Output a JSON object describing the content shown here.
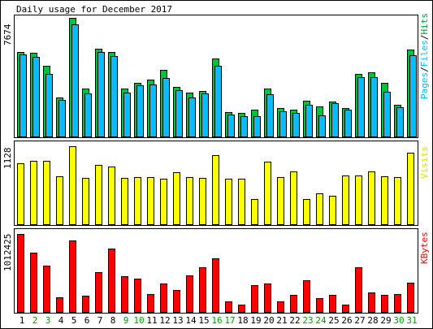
{
  "title": "Daily usage for December 2017",
  "legend": {
    "pages": "Pages",
    "files": "Files",
    "hits": "Hits",
    "visits": "Visits",
    "kbytes": "KBytes",
    "sep1": "/",
    "sep2": "/"
  },
  "axis_max": {
    "hits": "7674",
    "visits": "1128",
    "kbytes": "1012425"
  },
  "colors": {
    "hits": "#00c040",
    "files": "#00c0ff",
    "pages": "#00c0ff",
    "visits": "#ffff00",
    "kbytes": "#ff0000",
    "weekend_label": "#00a000",
    "weekday_label": "#000000",
    "frame": "#000000",
    "background": "#ffffff"
  },
  "chart_data": [
    {
      "type": "bar",
      "name": "hits-files",
      "categories": [
        "1",
        "2",
        "3",
        "4",
        "5",
        "6",
        "7",
        "8",
        "9",
        "10",
        "11",
        "12",
        "13",
        "14",
        "15",
        "16",
        "17",
        "18",
        "19",
        "20",
        "21",
        "22",
        "23",
        "24",
        "25",
        "26",
        "27",
        "28",
        "29",
        "30",
        "31"
      ],
      "ylim": [
        0,
        7674
      ],
      "series": [
        {
          "name": "Hits",
          "values": [
            5470,
            5420,
            4560,
            2500,
            7670,
            3100,
            5700,
            5460,
            3090,
            3490,
            3670,
            4320,
            3230,
            2820,
            2960,
            5070,
            1570,
            1540,
            1740,
            3090,
            1860,
            1730,
            2300,
            1960,
            2250,
            1850,
            4040,
            4140,
            3480,
            2060,
            5640
          ]
        },
        {
          "name": "Files",
          "values": [
            5300,
            5170,
            4050,
            2340,
            7270,
            2790,
            5480,
            5220,
            2820,
            3300,
            3380,
            3800,
            3000,
            2520,
            2790,
            4570,
            1400,
            1340,
            1310,
            2720,
            1620,
            1510,
            2050,
            1360,
            2150,
            1740,
            3840,
            3860,
            2900,
            1910,
            5250
          ]
        }
      ],
      "ylabel": "7674"
    },
    {
      "type": "bar",
      "name": "visits",
      "categories": [
        "1",
        "2",
        "3",
        "4",
        "5",
        "6",
        "7",
        "8",
        "9",
        "10",
        "11",
        "12",
        "13",
        "14",
        "15",
        "16",
        "17",
        "18",
        "19",
        "20",
        "21",
        "22",
        "23",
        "24",
        "25",
        "26",
        "27",
        "28",
        "29",
        "30",
        "31"
      ],
      "ylim": [
        0,
        1128
      ],
      "series": [
        {
          "name": "Visits",
          "values": [
            880,
            920,
            920,
            690,
            1128,
            670,
            860,
            840,
            670,
            680,
            680,
            660,
            750,
            680,
            670,
            1000,
            660,
            660,
            360,
            910,
            680,
            760,
            370,
            450,
            410,
            710,
            700,
            760,
            690,
            680,
            1030
          ]
        }
      ],
      "ylabel": "1128"
    },
    {
      "type": "bar",
      "name": "kbytes",
      "categories": [
        "1",
        "2",
        "3",
        "4",
        "5",
        "6",
        "7",
        "8",
        "9",
        "10",
        "11",
        "12",
        "13",
        "14",
        "15",
        "16",
        "17",
        "18",
        "19",
        "20",
        "21",
        "22",
        "23",
        "24",
        "25",
        "26",
        "27",
        "28",
        "29",
        "30",
        "31"
      ],
      "ylim": [
        0,
        1012425
      ],
      "series": [
        {
          "name": "KBytes",
          "values": [
            1012000,
            767000,
            605000,
            185000,
            926000,
            212000,
            517000,
            824000,
            466000,
            432000,
            233000,
            366000,
            290000,
            475000,
            578000,
            691000,
            141000,
            99000,
            352000,
            366000,
            135000,
            218000,
            407000,
            177000,
            219000,
            93000,
            578000,
            252000,
            226000,
            233000,
            376000
          ]
        }
      ],
      "ylabel": "1012425"
    }
  ],
  "x_labels": [
    "1",
    "2",
    "3",
    "4",
    "5",
    "6",
    "7",
    "8",
    "9",
    "10",
    "11",
    "12",
    "13",
    "14",
    "15",
    "16",
    "17",
    "18",
    "19",
    "20",
    "21",
    "22",
    "23",
    "24",
    "25",
    "26",
    "27",
    "28",
    "29",
    "30",
    "31"
  ],
  "weekend_days": [
    "2",
    "3",
    "9",
    "10",
    "16",
    "17",
    "23",
    "24",
    "30",
    "31"
  ]
}
